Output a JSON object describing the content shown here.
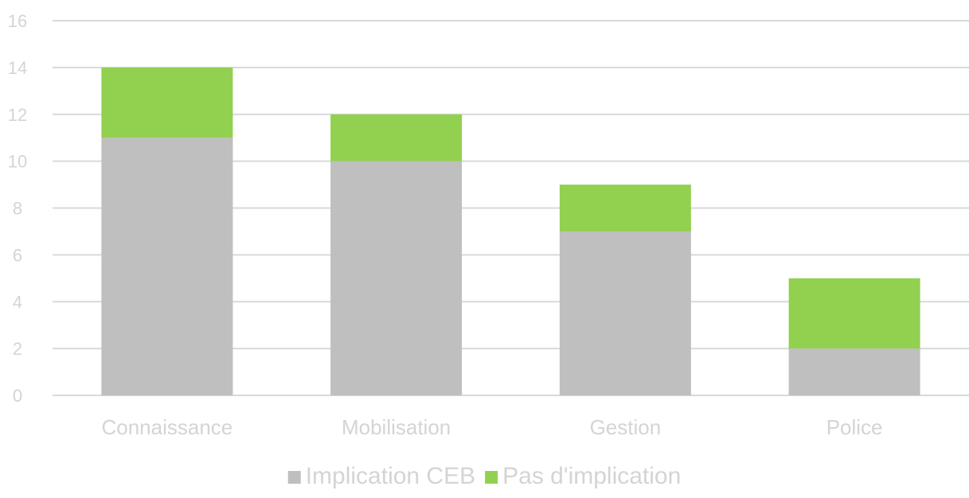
{
  "chart_data": {
    "type": "bar",
    "stacked": true,
    "categories": [
      "Connaissance",
      "Mobilisation",
      "Gestion",
      "Police"
    ],
    "series": [
      {
        "name": "Implication CEB",
        "values": [
          11,
          10,
          7,
          2
        ],
        "color": "#bfbfbf"
      },
      {
        "name": "Pas d'implication",
        "values": [
          3,
          2,
          2,
          3
        ],
        "color": "#92d050"
      }
    ],
    "y_ticks": [
      "0",
      "2",
      "4",
      "6",
      "8",
      "10",
      "12",
      "14",
      "16"
    ],
    "ylim": [
      0,
      16
    ],
    "title": "",
    "xlabel": "",
    "ylabel": "",
    "grid": true,
    "legend_position": "bottom",
    "colors": {
      "gridline": "#d9d9d9",
      "axis_text": "#d4d4d4"
    }
  }
}
